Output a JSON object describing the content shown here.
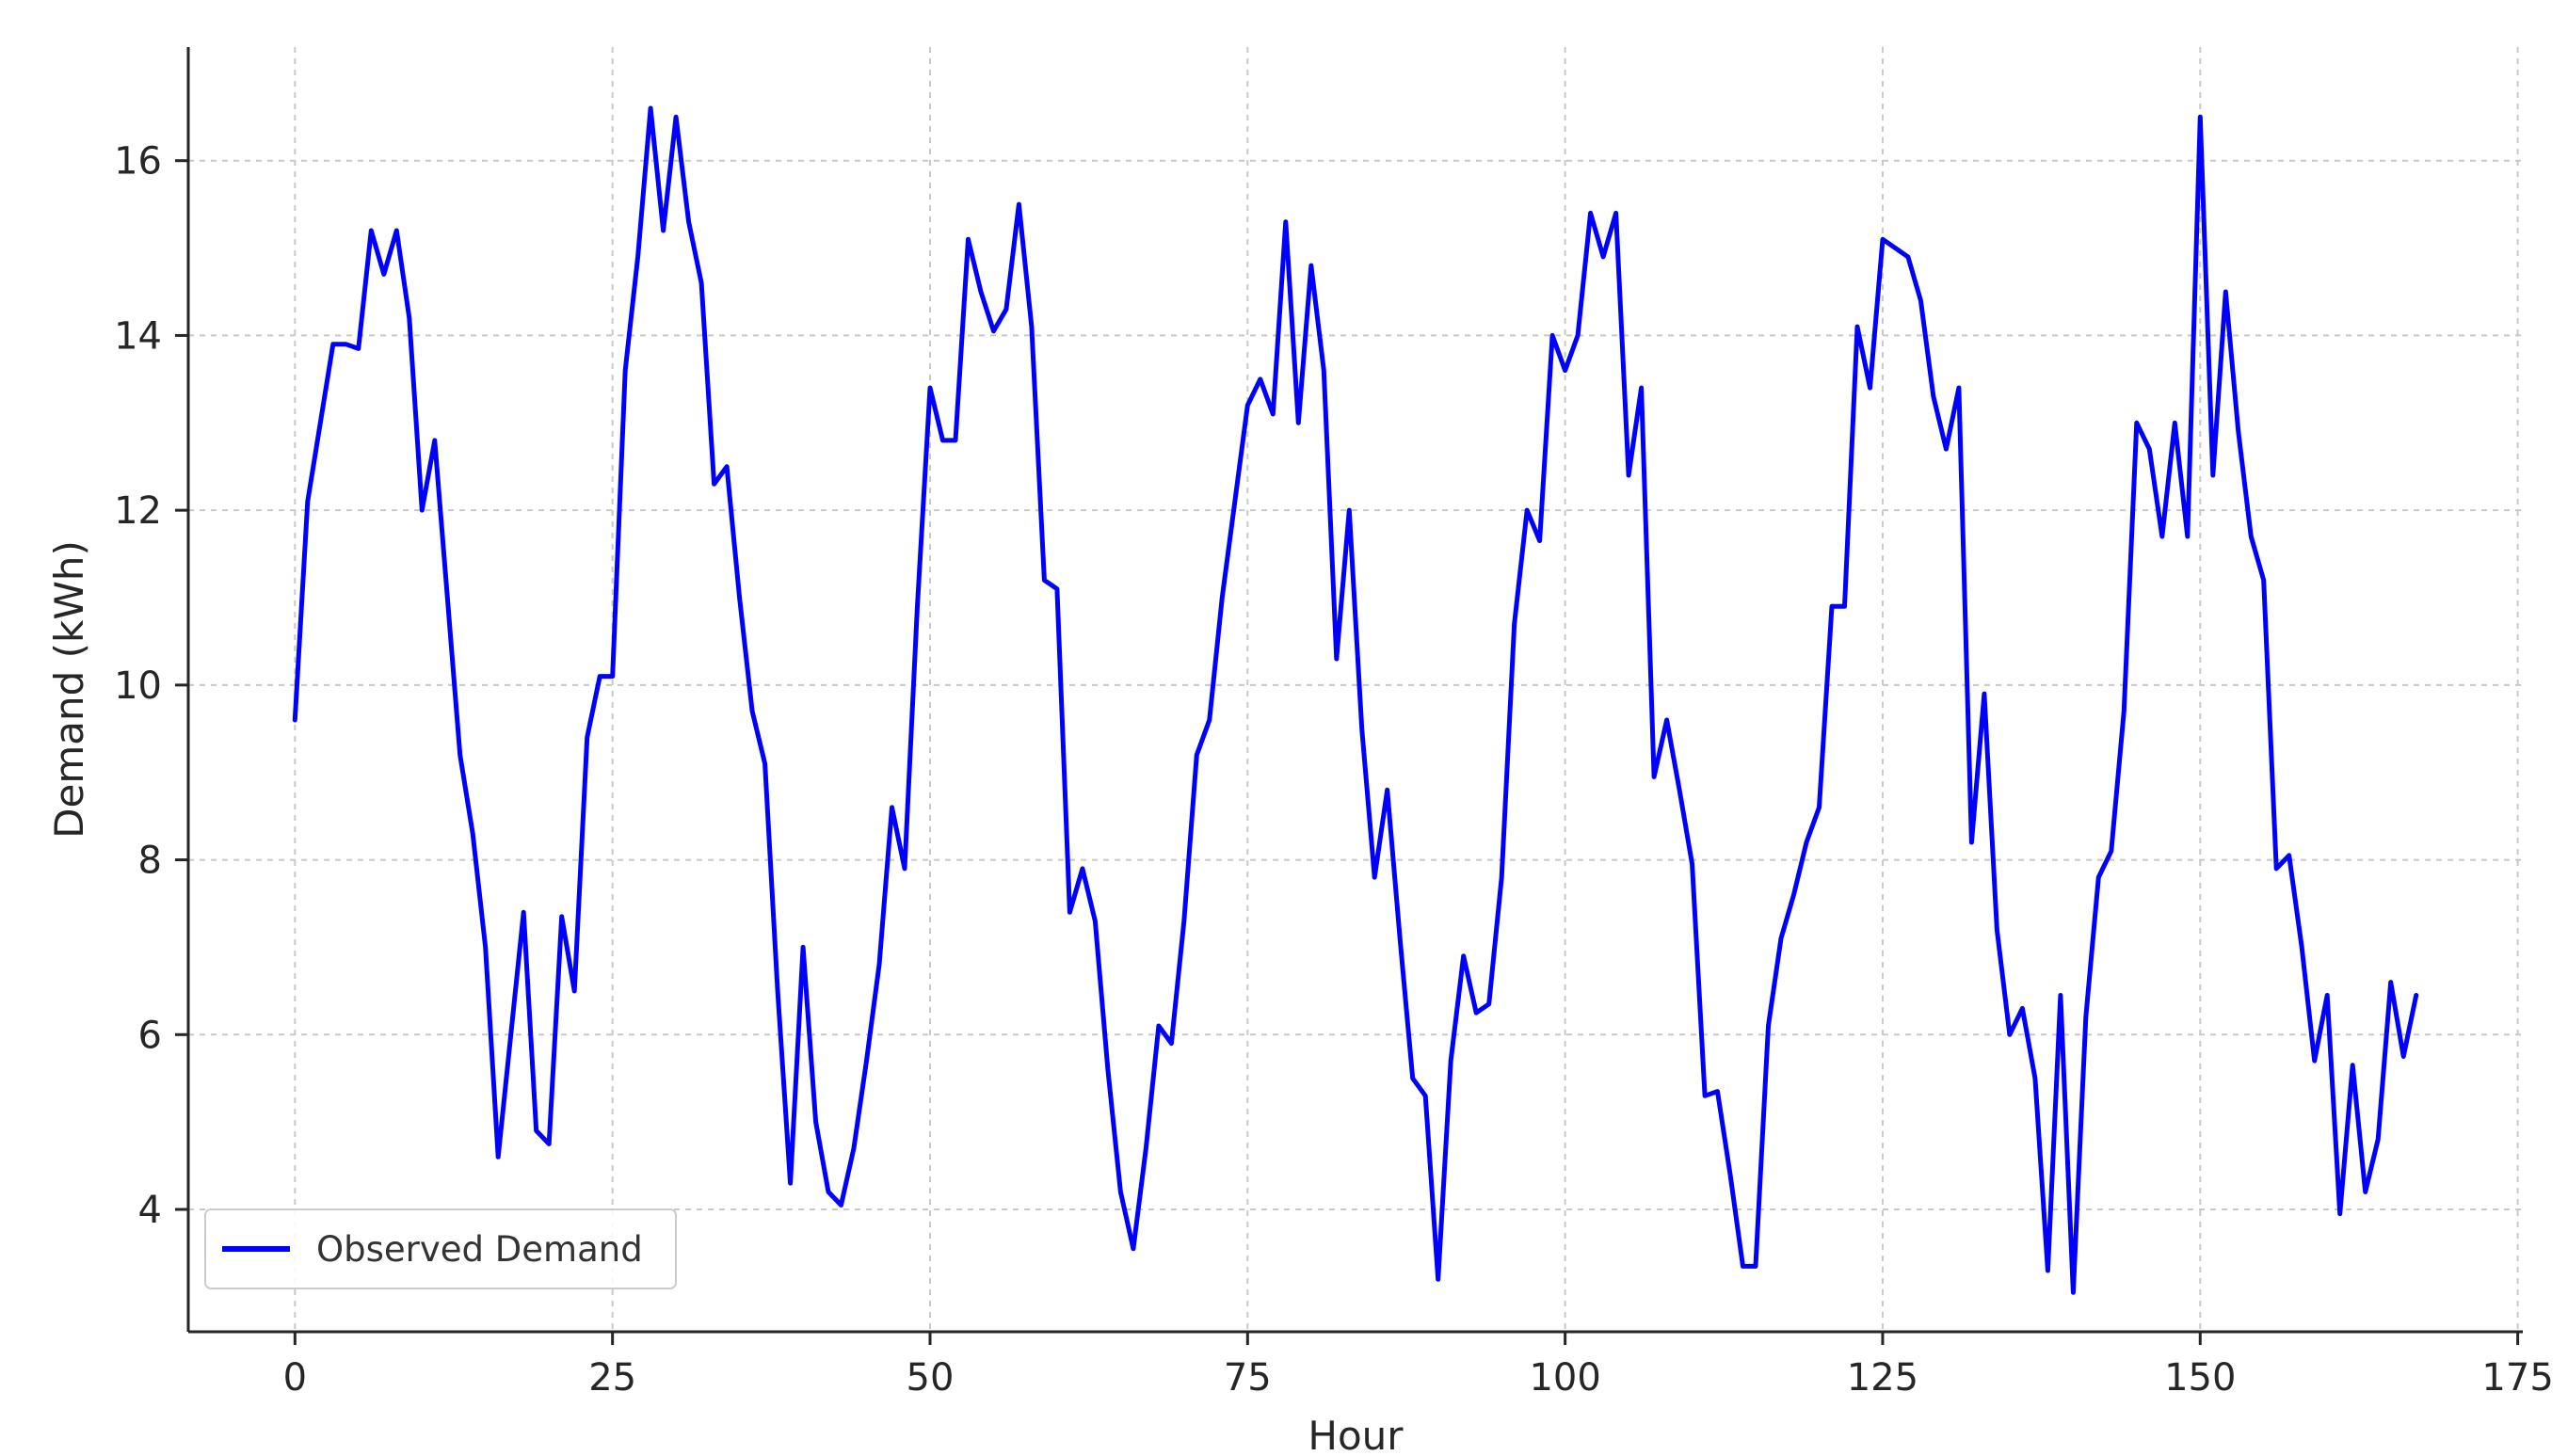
{
  "chart_data": {
    "type": "line",
    "title": "",
    "xlabel": "Hour",
    "ylabel": "Demand (kWh)",
    "xlim": [
      -8.4,
      175.4
    ],
    "ylim": [
      2.6,
      17.3
    ],
    "xticks": [
      0,
      25,
      50,
      75,
      100,
      125,
      150,
      175
    ],
    "yticks": [
      4,
      6,
      8,
      10,
      12,
      14,
      16
    ],
    "grid": true,
    "legend_position": "bottom-left",
    "colors": {
      "series": "#0000ff",
      "grid": "#c8c8c8",
      "axis": "#262626"
    },
    "series": [
      {
        "name": "Observed Demand",
        "color": "#0000ff",
        "x": [
          0,
          1,
          2,
          3,
          4,
          5,
          6,
          7,
          8,
          9,
          10,
          11,
          12,
          13,
          14,
          15,
          16,
          17,
          18,
          19,
          20,
          21,
          22,
          23,
          24,
          25,
          26,
          27,
          28,
          29,
          30,
          31,
          32,
          33,
          34,
          35,
          36,
          37,
          38,
          39,
          40,
          41,
          42,
          43,
          44,
          45,
          46,
          47,
          48,
          49,
          50,
          51,
          52,
          53,
          54,
          55,
          56,
          57,
          58,
          59,
          60,
          61,
          62,
          63,
          64,
          65,
          66,
          67,
          68,
          69,
          70,
          71,
          72,
          73,
          74,
          75,
          76,
          77,
          78,
          79,
          80,
          81,
          82,
          83,
          84,
          85,
          86,
          87,
          88,
          89,
          90,
          91,
          92,
          93,
          94,
          95,
          96,
          97,
          98,
          99,
          100,
          101,
          102,
          103,
          104,
          105,
          106,
          107,
          108,
          109,
          110,
          111,
          112,
          113,
          114,
          115,
          116,
          117,
          118,
          119,
          120,
          121,
          122,
          123,
          124,
          125,
          126,
          127,
          128,
          129,
          130,
          131,
          132,
          133,
          134,
          135,
          136,
          137,
          138,
          139,
          140,
          141,
          142,
          143,
          144,
          145,
          146,
          147,
          148,
          149,
          150,
          151,
          152,
          153,
          154,
          155,
          156,
          157,
          158,
          159,
          160,
          161,
          162,
          163,
          164,
          165,
          166,
          167
        ],
        "y": [
          9.6,
          12.1,
          13.0,
          13.9,
          13.9,
          13.85,
          15.2,
          14.7,
          15.2,
          14.2,
          12.0,
          12.8,
          11.0,
          9.2,
          8.3,
          7.0,
          4.6,
          6.0,
          7.4,
          4.9,
          4.75,
          7.35,
          6.5,
          9.4,
          10.1,
          10.1,
          13.6,
          14.9,
          16.6,
          15.2,
          16.5,
          15.3,
          14.6,
          12.3,
          12.5,
          11.0,
          9.7,
          9.1,
          6.5,
          4.3,
          7.0,
          5.0,
          4.2,
          4.05,
          4.7,
          5.7,
          6.8,
          8.6,
          7.9,
          10.9,
          13.4,
          12.8,
          12.8,
          15.1,
          14.5,
          14.05,
          14.3,
          15.5,
          14.1,
          11.2,
          11.1,
          7.4,
          7.9,
          7.3,
          5.6,
          4.2,
          3.55,
          4.7,
          6.1,
          5.9,
          7.3,
          9.2,
          9.6,
          11.0,
          12.1,
          13.2,
          13.5,
          13.1,
          15.3,
          13.0,
          14.8,
          13.6,
          10.3,
          12.0,
          9.5,
          7.8,
          8.8,
          7.1,
          5.5,
          5.3,
          3.2,
          5.7,
          6.9,
          6.25,
          6.35,
          7.8,
          10.7,
          12.0,
          11.65,
          14.0,
          13.6,
          14.0,
          15.4,
          14.9,
          15.4,
          12.4,
          13.4,
          8.95,
          9.6,
          8.8,
          7.95,
          5.3,
          5.35,
          4.4,
          3.35,
          3.35,
          6.1,
          7.1,
          7.6,
          8.2,
          8.6,
          10.9,
          10.9,
          14.1,
          13.4,
          15.1,
          15.0,
          14.9,
          14.4,
          13.3,
          12.7,
          13.4,
          8.2,
          9.9,
          7.2,
          6.0,
          6.3,
          5.5,
          3.3,
          6.45,
          3.05,
          6.2,
          7.8,
          8.1,
          9.7,
          13.0,
          12.7,
          11.7,
          13.0,
          11.7,
          16.5,
          12.4,
          14.5,
          12.9,
          11.7,
          11.2,
          7.9,
          8.05,
          7.0,
          5.7,
          6.45,
          3.95,
          5.65,
          4.2,
          4.8,
          6.6,
          5.75,
          6.45
        ]
      }
    ]
  }
}
